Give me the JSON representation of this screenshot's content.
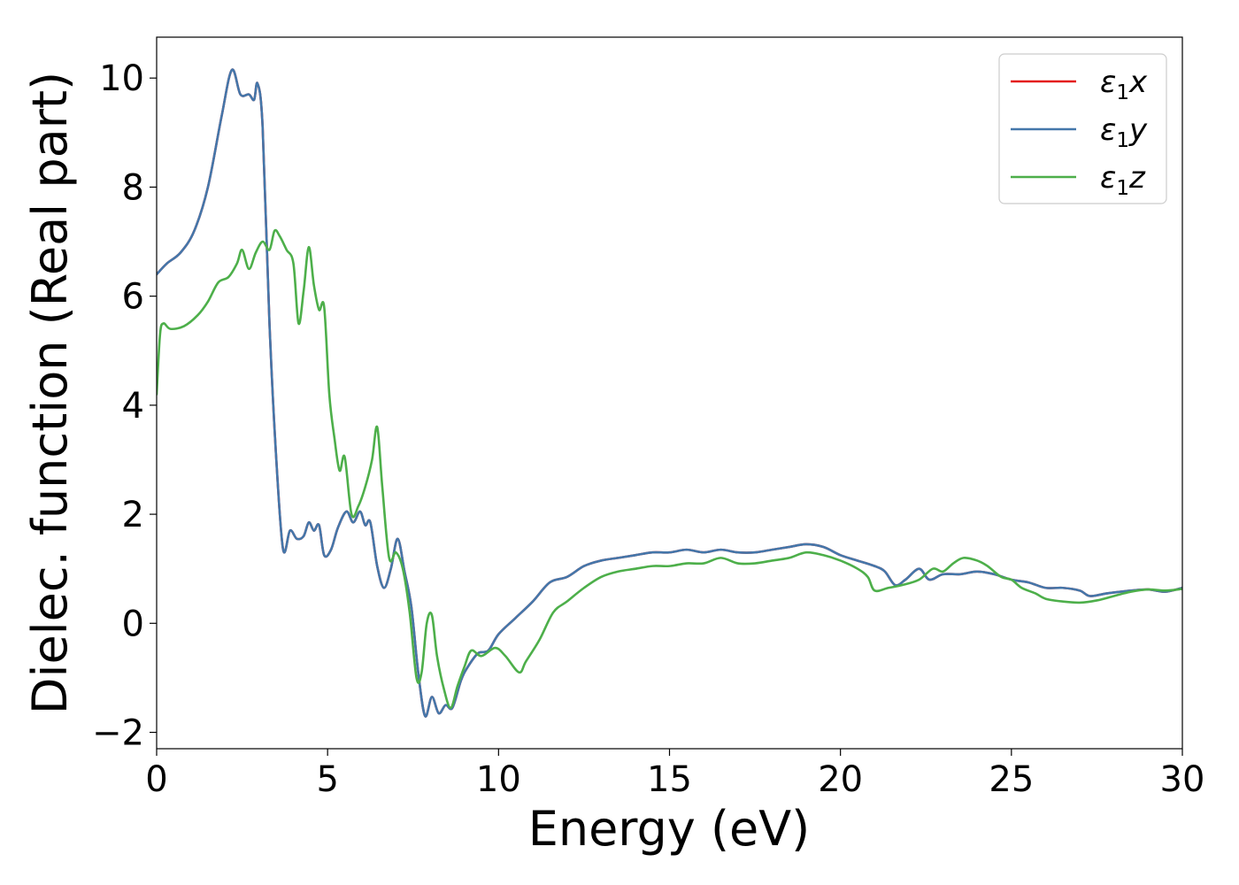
{
  "chart_data": {
    "type": "line",
    "title": "",
    "xlabel": "Energy (eV)",
    "ylabel": "Dielec. function (Real part)",
    "xlim": [
      0,
      30
    ],
    "ylim": [
      -2.3,
      10.75
    ],
    "xticks": [
      0,
      5,
      10,
      15,
      20,
      25,
      30
    ],
    "yticks": [
      -2,
      0,
      2,
      4,
      6,
      8,
      10
    ],
    "xtick_labels": [
      "0",
      "5",
      "10",
      "15",
      "20",
      "25",
      "30"
    ],
    "ytick_labels": [
      "−2",
      "0",
      "2",
      "4",
      "6",
      "8",
      "10"
    ],
    "grid": false,
    "legend_position": "top-right",
    "series": [
      {
        "name": "ε1x",
        "legend_base": "ε",
        "legend_sub": "1",
        "legend_var": "x",
        "color": "#e41a1c",
        "points": [
          [
            0,
            6.4
          ],
          [
            0.3,
            6.6
          ],
          [
            0.7,
            6.8
          ],
          [
            1.1,
            7.2
          ],
          [
            1.5,
            8.0
          ],
          [
            1.9,
            9.3
          ],
          [
            2.2,
            10.15
          ],
          [
            2.45,
            9.7
          ],
          [
            2.7,
            9.7
          ],
          [
            2.85,
            9.6
          ],
          [
            2.95,
            9.9
          ],
          [
            3.1,
            9.1
          ],
          [
            3.3,
            5.5
          ],
          [
            3.5,
            3.0
          ],
          [
            3.7,
            1.35
          ],
          [
            3.9,
            1.7
          ],
          [
            4.1,
            1.55
          ],
          [
            4.3,
            1.6
          ],
          [
            4.45,
            1.85
          ],
          [
            4.6,
            1.7
          ],
          [
            4.75,
            1.8
          ],
          [
            4.9,
            1.25
          ],
          [
            5.1,
            1.35
          ],
          [
            5.3,
            1.75
          ],
          [
            5.55,
            2.05
          ],
          [
            5.75,
            1.85
          ],
          [
            5.95,
            2.05
          ],
          [
            6.1,
            1.8
          ],
          [
            6.25,
            1.85
          ],
          [
            6.45,
            1.05
          ],
          [
            6.65,
            0.65
          ],
          [
            6.85,
            1.0
          ],
          [
            7.05,
            1.55
          ],
          [
            7.25,
            0.95
          ],
          [
            7.45,
            0.3
          ],
          [
            7.65,
            -0.9
          ],
          [
            7.85,
            -1.7
          ],
          [
            8.05,
            -1.35
          ],
          [
            8.25,
            -1.65
          ],
          [
            8.45,
            -1.5
          ],
          [
            8.65,
            -1.55
          ],
          [
            8.9,
            -1.05
          ],
          [
            9.1,
            -0.8
          ],
          [
            9.4,
            -0.55
          ],
          [
            9.7,
            -0.5
          ],
          [
            10.0,
            -0.2
          ],
          [
            10.5,
            0.1
          ],
          [
            11.0,
            0.4
          ],
          [
            11.5,
            0.75
          ],
          [
            12.0,
            0.85
          ],
          [
            12.5,
            1.05
          ],
          [
            13.0,
            1.15
          ],
          [
            13.5,
            1.2
          ],
          [
            14.0,
            1.25
          ],
          [
            14.5,
            1.3
          ],
          [
            15.0,
            1.3
          ],
          [
            15.5,
            1.35
          ],
          [
            16.0,
            1.3
          ],
          [
            16.5,
            1.35
          ],
          [
            17.0,
            1.3
          ],
          [
            17.5,
            1.3
          ],
          [
            18.0,
            1.35
          ],
          [
            18.5,
            1.4
          ],
          [
            19.0,
            1.45
          ],
          [
            19.5,
            1.4
          ],
          [
            20.0,
            1.25
          ],
          [
            20.5,
            1.15
          ],
          [
            21.0,
            1.05
          ],
          [
            21.3,
            0.95
          ],
          [
            21.6,
            0.7
          ],
          [
            21.9,
            0.8
          ],
          [
            22.3,
            1.0
          ],
          [
            22.6,
            0.8
          ],
          [
            23.0,
            0.9
          ],
          [
            23.5,
            0.9
          ],
          [
            24.0,
            0.95
          ],
          [
            24.5,
            0.9
          ],
          [
            25.0,
            0.8
          ],
          [
            25.5,
            0.75
          ],
          [
            26.0,
            0.65
          ],
          [
            26.5,
            0.65
          ],
          [
            27.0,
            0.6
          ],
          [
            27.3,
            0.5
          ],
          [
            27.8,
            0.55
          ],
          [
            28.5,
            0.6
          ],
          [
            29.0,
            0.62
          ],
          [
            29.5,
            0.58
          ],
          [
            30.0,
            0.65
          ]
        ]
      },
      {
        "name": "ε1y",
        "legend_base": "ε",
        "legend_sub": "1",
        "legend_var": "y",
        "color": "#4477aa",
        "points": [
          [
            0,
            6.4
          ],
          [
            0.3,
            6.6
          ],
          [
            0.7,
            6.8
          ],
          [
            1.1,
            7.2
          ],
          [
            1.5,
            8.0
          ],
          [
            1.9,
            9.3
          ],
          [
            2.2,
            10.15
          ],
          [
            2.45,
            9.7
          ],
          [
            2.7,
            9.7
          ],
          [
            2.85,
            9.6
          ],
          [
            2.95,
            9.9
          ],
          [
            3.1,
            9.1
          ],
          [
            3.3,
            5.5
          ],
          [
            3.5,
            3.0
          ],
          [
            3.7,
            1.35
          ],
          [
            3.9,
            1.7
          ],
          [
            4.1,
            1.55
          ],
          [
            4.3,
            1.6
          ],
          [
            4.45,
            1.85
          ],
          [
            4.6,
            1.7
          ],
          [
            4.75,
            1.8
          ],
          [
            4.9,
            1.25
          ],
          [
            5.1,
            1.35
          ],
          [
            5.3,
            1.75
          ],
          [
            5.55,
            2.05
          ],
          [
            5.75,
            1.85
          ],
          [
            5.95,
            2.05
          ],
          [
            6.1,
            1.8
          ],
          [
            6.25,
            1.85
          ],
          [
            6.45,
            1.05
          ],
          [
            6.65,
            0.65
          ],
          [
            6.85,
            1.0
          ],
          [
            7.05,
            1.55
          ],
          [
            7.25,
            0.95
          ],
          [
            7.45,
            0.3
          ],
          [
            7.65,
            -0.9
          ],
          [
            7.85,
            -1.7
          ],
          [
            8.05,
            -1.35
          ],
          [
            8.25,
            -1.65
          ],
          [
            8.45,
            -1.5
          ],
          [
            8.65,
            -1.55
          ],
          [
            8.9,
            -1.05
          ],
          [
            9.1,
            -0.8
          ],
          [
            9.4,
            -0.55
          ],
          [
            9.7,
            -0.5
          ],
          [
            10.0,
            -0.2
          ],
          [
            10.5,
            0.1
          ],
          [
            11.0,
            0.4
          ],
          [
            11.5,
            0.75
          ],
          [
            12.0,
            0.85
          ],
          [
            12.5,
            1.05
          ],
          [
            13.0,
            1.15
          ],
          [
            13.5,
            1.2
          ],
          [
            14.0,
            1.25
          ],
          [
            14.5,
            1.3
          ],
          [
            15.0,
            1.3
          ],
          [
            15.5,
            1.35
          ],
          [
            16.0,
            1.3
          ],
          [
            16.5,
            1.35
          ],
          [
            17.0,
            1.3
          ],
          [
            17.5,
            1.3
          ],
          [
            18.0,
            1.35
          ],
          [
            18.5,
            1.4
          ],
          [
            19.0,
            1.45
          ],
          [
            19.5,
            1.4
          ],
          [
            20.0,
            1.25
          ],
          [
            20.5,
            1.15
          ],
          [
            21.0,
            1.05
          ],
          [
            21.3,
            0.95
          ],
          [
            21.6,
            0.7
          ],
          [
            21.9,
            0.8
          ],
          [
            22.3,
            1.0
          ],
          [
            22.6,
            0.8
          ],
          [
            23.0,
            0.9
          ],
          [
            23.5,
            0.9
          ],
          [
            24.0,
            0.95
          ],
          [
            24.5,
            0.9
          ],
          [
            25.0,
            0.8
          ],
          [
            25.5,
            0.75
          ],
          [
            26.0,
            0.65
          ],
          [
            26.5,
            0.65
          ],
          [
            27.0,
            0.6
          ],
          [
            27.3,
            0.5
          ],
          [
            27.8,
            0.55
          ],
          [
            28.5,
            0.6
          ],
          [
            29.0,
            0.62
          ],
          [
            29.5,
            0.58
          ],
          [
            30.0,
            0.65
          ]
        ]
      },
      {
        "name": "ε1z",
        "legend_base": "ε",
        "legend_sub": "1",
        "legend_var": "z",
        "color": "#4daf4a",
        "points": [
          [
            0,
            4.2
          ],
          [
            0.1,
            5.3
          ],
          [
            0.2,
            5.5
          ],
          [
            0.4,
            5.4
          ],
          [
            0.8,
            5.45
          ],
          [
            1.2,
            5.65
          ],
          [
            1.5,
            5.9
          ],
          [
            1.8,
            6.25
          ],
          [
            2.1,
            6.35
          ],
          [
            2.35,
            6.6
          ],
          [
            2.5,
            6.85
          ],
          [
            2.7,
            6.5
          ],
          [
            2.9,
            6.8
          ],
          [
            3.1,
            7.0
          ],
          [
            3.3,
            6.85
          ],
          [
            3.45,
            7.2
          ],
          [
            3.6,
            7.1
          ],
          [
            3.8,
            6.85
          ],
          [
            4.0,
            6.6
          ],
          [
            4.15,
            5.5
          ],
          [
            4.3,
            6.1
          ],
          [
            4.45,
            6.9
          ],
          [
            4.6,
            6.2
          ],
          [
            4.75,
            5.75
          ],
          [
            4.9,
            5.8
          ],
          [
            5.05,
            4.2
          ],
          [
            5.2,
            3.4
          ],
          [
            5.35,
            2.8
          ],
          [
            5.5,
            3.05
          ],
          [
            5.7,
            2.0
          ],
          [
            5.9,
            2.15
          ],
          [
            6.1,
            2.5
          ],
          [
            6.3,
            3.0
          ],
          [
            6.45,
            3.6
          ],
          [
            6.6,
            2.5
          ],
          [
            6.8,
            1.2
          ],
          [
            7.0,
            1.3
          ],
          [
            7.2,
            1.0
          ],
          [
            7.4,
            0.2
          ],
          [
            7.6,
            -1.0
          ],
          [
            7.75,
            -0.9
          ],
          [
            7.9,
            0.0
          ],
          [
            8.05,
            0.15
          ],
          [
            8.2,
            -0.6
          ],
          [
            8.4,
            -1.2
          ],
          [
            8.6,
            -1.55
          ],
          [
            8.8,
            -1.15
          ],
          [
            9.0,
            -0.8
          ],
          [
            9.2,
            -0.5
          ],
          [
            9.5,
            -0.6
          ],
          [
            9.9,
            -0.45
          ],
          [
            10.2,
            -0.6
          ],
          [
            10.6,
            -0.9
          ],
          [
            10.8,
            -0.7
          ],
          [
            11.2,
            -0.3
          ],
          [
            11.6,
            0.2
          ],
          [
            12.0,
            0.4
          ],
          [
            12.5,
            0.65
          ],
          [
            13.0,
            0.85
          ],
          [
            13.5,
            0.95
          ],
          [
            14.0,
            1.0
          ],
          [
            14.5,
            1.05
          ],
          [
            15.0,
            1.05
          ],
          [
            15.5,
            1.1
          ],
          [
            16.0,
            1.1
          ],
          [
            16.5,
            1.2
          ],
          [
            17.0,
            1.1
          ],
          [
            17.5,
            1.1
          ],
          [
            18.0,
            1.15
          ],
          [
            18.5,
            1.2
          ],
          [
            19.0,
            1.3
          ],
          [
            19.5,
            1.25
          ],
          [
            20.0,
            1.15
          ],
          [
            20.5,
            1.0
          ],
          [
            20.8,
            0.85
          ],
          [
            21.0,
            0.6
          ],
          [
            21.4,
            0.65
          ],
          [
            21.8,
            0.7
          ],
          [
            22.3,
            0.8
          ],
          [
            22.7,
            1.0
          ],
          [
            23.0,
            0.95
          ],
          [
            23.3,
            1.1
          ],
          [
            23.6,
            1.2
          ],
          [
            24.0,
            1.15
          ],
          [
            24.3,
            1.05
          ],
          [
            24.7,
            0.85
          ],
          [
            25.0,
            0.8
          ],
          [
            25.3,
            0.65
          ],
          [
            25.7,
            0.55
          ],
          [
            26.0,
            0.45
          ],
          [
            26.5,
            0.4
          ],
          [
            27.0,
            0.38
          ],
          [
            27.5,
            0.42
          ],
          [
            28.0,
            0.5
          ],
          [
            28.5,
            0.58
          ],
          [
            29.0,
            0.62
          ],
          [
            29.5,
            0.6
          ],
          [
            30.0,
            0.63
          ]
        ]
      }
    ]
  }
}
